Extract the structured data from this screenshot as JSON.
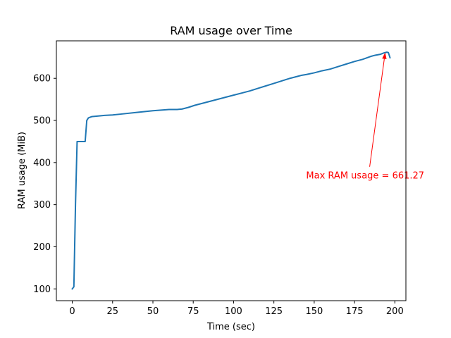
{
  "chart_data": {
    "type": "line",
    "title": "RAM usage over Time",
    "xlabel": "Time (sec)",
    "ylabel": "RAM usage (MiB)",
    "xlim": [
      -9.85,
      206.85
    ],
    "ylim": [
      72,
      689
    ],
    "xticks": [
      0,
      25,
      50,
      75,
      100,
      125,
      150,
      175,
      200
    ],
    "yticks": [
      100,
      200,
      300,
      400,
      500,
      600
    ],
    "grid": false,
    "legend": "none",
    "series": [
      {
        "color": "#1f77b4",
        "x": [
          0,
          1,
          2,
          3,
          4,
          5,
          6,
          7,
          8,
          9,
          10,
          12,
          15,
          20,
          25,
          30,
          40,
          50,
          60,
          65,
          68,
          72,
          76,
          80,
          85,
          90,
          95,
          100,
          105,
          110,
          115,
          120,
          125,
          130,
          135,
          140,
          142,
          145,
          150,
          155,
          160,
          165,
          170,
          175,
          180,
          185,
          188,
          191,
          193,
          195,
          196,
          197
        ],
        "y": [
          100,
          105,
          300,
          450,
          450,
          450,
          450,
          450,
          450,
          500,
          506,
          509,
          510,
          512,
          513,
          515,
          519,
          523,
          526,
          526,
          527,
          531,
          536,
          540,
          545,
          550,
          555,
          560,
          565,
          570,
          576,
          582,
          588,
          594,
          600,
          605,
          607,
          609,
          613,
          618,
          622,
          628,
          634,
          640,
          645,
          652,
          655,
          657,
          660,
          662,
          661,
          649
        ]
      }
    ],
    "annotations": [
      {
        "text": "Max RAM usage = 661.27",
        "color": "#ff0000",
        "text_x": 145,
        "text_y": 370,
        "point_x": 194,
        "point_y": 661.27
      }
    ]
  }
}
